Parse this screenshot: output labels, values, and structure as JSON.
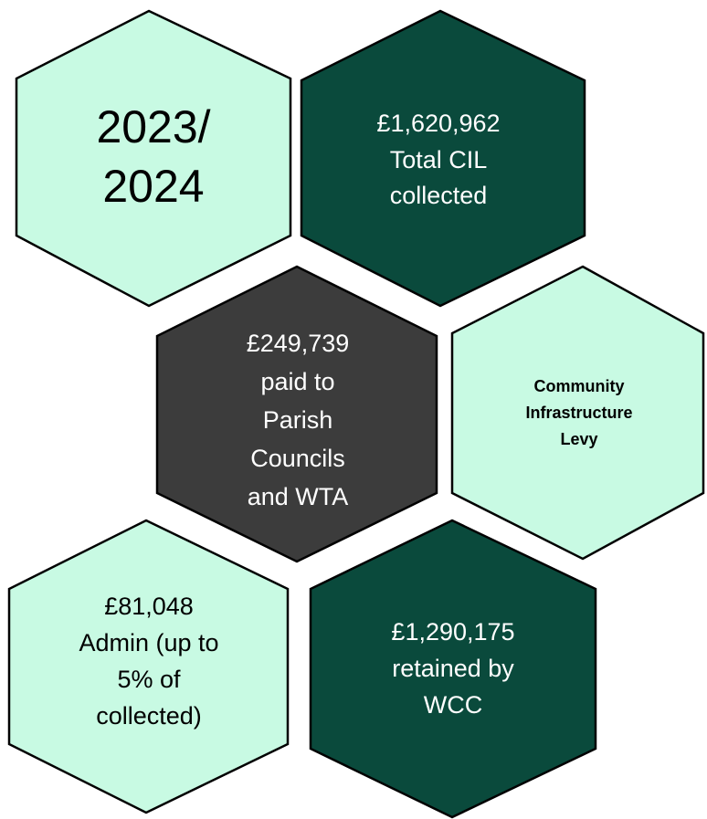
{
  "hexagons": [
    {
      "lines": [
        "2023/",
        "2024"
      ]
    },
    {
      "lines": [
        "£1,620,962",
        "Total CIL",
        "collected"
      ]
    },
    {
      "lines": [
        "£249,739",
        "paid to",
        "Parish",
        "Councils",
        "and WTA"
      ]
    },
    {
      "lines": [
        "Community",
        "Infrastructure",
        "Levy"
      ]
    },
    {
      "lines": [
        "£81,048",
        "Admin (up to",
        "5% of",
        "collected)"
      ]
    },
    {
      "lines": [
        "£1,290,175",
        "retained by",
        "WCC"
      ]
    }
  ]
}
